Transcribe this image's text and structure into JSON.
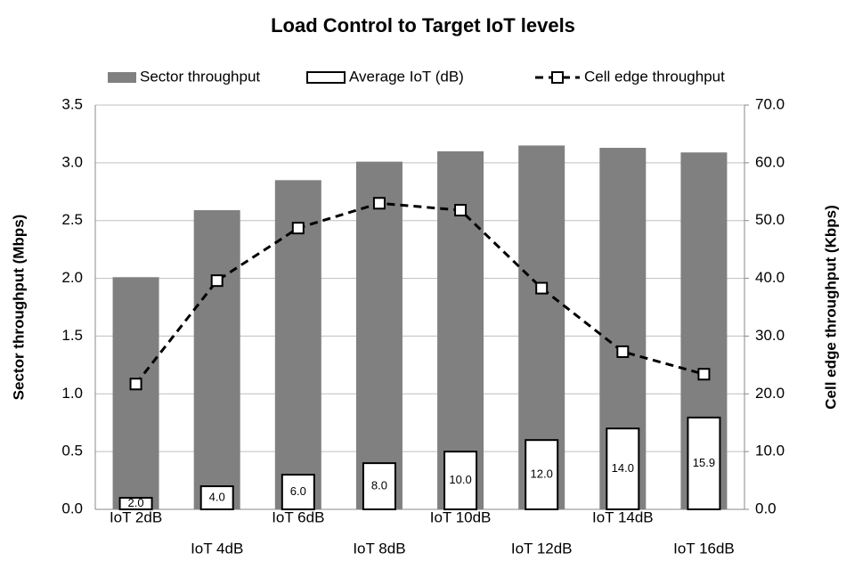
{
  "chart_data": {
    "type": "bar",
    "title": "Load Control to Target IoT levels",
    "categories": [
      "IoT 2dB",
      "IoT 4dB",
      "IoT 6dB",
      "IoT 8dB",
      "IoT 10dB",
      "IoT 12dB",
      "IoT 14dB",
      "IoT 16dB"
    ],
    "series": [
      {
        "name": "Sector throughput",
        "type": "bar",
        "color": "#808080",
        "values": [
          2.01,
          2.59,
          2.85,
          3.01,
          3.1,
          3.15,
          3.13,
          3.09
        ]
      },
      {
        "name": "Average IoT (dB)",
        "type": "bar",
        "axis": "y2",
        "color": "#ffffff",
        "values": [
          2.0,
          4.0,
          6.0,
          8.0,
          10.0,
          12.0,
          14.0,
          15.9
        ],
        "value_labels": [
          "2.0",
          "4.0",
          "6.0",
          "8.0",
          "10.0",
          "12.0",
          "14.0",
          "15.9"
        ]
      },
      {
        "name": "Cell edge throughput",
        "type": "line",
        "axis": "y2",
        "color": "#000000",
        "values": [
          21.7,
          39.6,
          48.7,
          53.0,
          51.8,
          38.3,
          27.3,
          23.4
        ]
      }
    ],
    "y_label": "Sector throughput (Mbps)",
    "y2_label": "Cell edge throughput (Kbps)",
    "ylim": [
      0,
      3.5
    ],
    "yticks": [
      {
        "value": 0,
        "label": "0.0"
      },
      0.5,
      {
        "value": 1,
        "label": "1.0"
      },
      1.5,
      {
        "value": 2,
        "label": "2.0"
      },
      2.5,
      {
        "value": 3,
        "label": "3.0"
      },
      3.5
    ],
    "y2lim": [
      0,
      70
    ],
    "y2ticks": [
      {
        "value": 0,
        "label": "0.0"
      },
      {
        "value": 10,
        "label": "10.0"
      },
      {
        "value": 20,
        "label": "20.0"
      },
      {
        "value": 30,
        "label": "30.0"
      },
      {
        "value": 40,
        "label": "40.0"
      },
      {
        "value": 50,
        "label": "50.0"
      },
      {
        "value": 60,
        "label": "60.0"
      },
      {
        "value": 70,
        "label": "70.0"
      }
    ],
    "grid": true,
    "legend": "top"
  }
}
